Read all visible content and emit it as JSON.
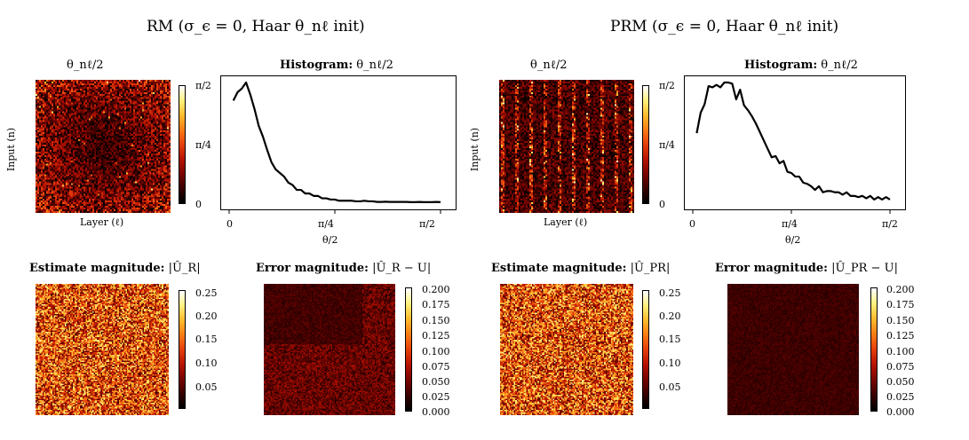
{
  "colors": {
    "colormap": [
      "#000000",
      "#3a0000",
      "#7a0500",
      "#b81300",
      "#e6400b",
      "#f97c14",
      "#fdbb2d",
      "#fff17a",
      "#ffffff"
    ],
    "line": "#000000",
    "background": "#ffffff"
  },
  "left_panel": {
    "title": "RM (σ_ϵ = 0, Haar θ_nℓ init)",
    "heatmap": {
      "title": "θ_nℓ/2",
      "ylabel": "Input (n)",
      "xlabel": "Layer (ℓ)",
      "colorbar_ticks": [
        "π/2",
        "π/4",
        "0"
      ],
      "pattern": "uniform-center-dark"
    },
    "histogram": {
      "title_bold": "Histogram:",
      "title_rest": "θ_nℓ/2",
      "xlabel": "θ/2",
      "xticks": [
        "0",
        "π/4",
        "π/2"
      ]
    },
    "estimate": {
      "title_bold": "Estimate magnitude:",
      "title_rest": "|Û_R|",
      "colorbar_ticks": [
        "0.25",
        "0.20",
        "0.15",
        "0.10",
        "0.05"
      ]
    },
    "error": {
      "title_bold": "Error magnitude:",
      "title_rest": "|Û_R − U|",
      "colorbar_ticks": [
        "0.200",
        "0.175",
        "0.150",
        "0.125",
        "0.100",
        "0.075",
        "0.050",
        "0.025",
        "0.000"
      ]
    }
  },
  "right_panel": {
    "title": "PRM (σ_ϵ = 0, Haar θ_nℓ init)",
    "heatmap": {
      "title": "θ_nℓ/2",
      "ylabel": "Input (n)",
      "xlabel": "Layer (ℓ)",
      "colorbar_ticks": [
        "π/2",
        "π/4",
        "0"
      ],
      "pattern": "vertical-stripes"
    },
    "histogram": {
      "title_bold": "Histogram:",
      "title_rest": "θ_nℓ/2",
      "xlabel": "θ/2",
      "xticks": [
        "0",
        "π/4",
        "π/2"
      ]
    },
    "estimate": {
      "title_bold": "Estimate magnitude:",
      "title_rest": "|Û_PR|",
      "colorbar_ticks": [
        "0.25",
        "0.20",
        "0.15",
        "0.10",
        "0.05"
      ]
    },
    "error": {
      "title_bold": "Error magnitude:",
      "title_rest": "|Û_PR − U|",
      "colorbar_ticks": [
        "0.200",
        "0.175",
        "0.150",
        "0.125",
        "0.100",
        "0.075",
        "0.050",
        "0.025",
        "0.000"
      ]
    }
  },
  "chart_data": [
    {
      "type": "line",
      "title": "Histogram: θ_nℓ/2",
      "xlabel": "θ/2",
      "x_unit": "fraction of π/2",
      "xlim": [
        0,
        1
      ],
      "x": [
        0.02,
        0.04,
        0.06,
        0.08,
        0.1,
        0.12,
        0.14,
        0.16,
        0.18,
        0.2,
        0.22,
        0.24,
        0.26,
        0.28,
        0.3,
        0.32,
        0.34,
        0.36,
        0.38,
        0.4,
        0.42,
        0.44,
        0.46,
        0.48,
        0.5,
        0.52,
        0.54,
        0.56,
        0.58,
        0.6,
        0.62,
        0.64,
        0.66,
        0.68,
        0.7,
        0.72,
        0.74,
        0.76,
        0.78,
        0.8,
        0.82,
        0.84,
        0.86,
        0.88,
        0.9,
        0.92,
        0.94,
        0.96,
        0.98,
        1.0
      ],
      "values": [
        0.85,
        0.92,
        0.95,
        1.0,
        0.9,
        0.78,
        0.64,
        0.55,
        0.44,
        0.34,
        0.28,
        0.25,
        0.22,
        0.17,
        0.15,
        0.11,
        0.11,
        0.08,
        0.08,
        0.06,
        0.06,
        0.04,
        0.04,
        0.03,
        0.03,
        0.02,
        0.02,
        0.02,
        0.02,
        0.015,
        0.015,
        0.02,
        0.015,
        0.015,
        0.01,
        0.01,
        0.012,
        0.01,
        0.01,
        0.01,
        0.01,
        0.01,
        0.008,
        0.008,
        0.01,
        0.008,
        0.008,
        0.008,
        0.01,
        0.008
      ]
    },
    {
      "type": "line",
      "title": "Histogram: θ_nℓ/2",
      "xlabel": "θ/2",
      "x_unit": "fraction of π/2",
      "xlim": [
        0,
        1
      ],
      "x": [
        0.02,
        0.04,
        0.06,
        0.08,
        0.1,
        0.12,
        0.14,
        0.16,
        0.18,
        0.2,
        0.22,
        0.24,
        0.26,
        0.28,
        0.3,
        0.32,
        0.34,
        0.36,
        0.38,
        0.4,
        0.42,
        0.44,
        0.46,
        0.48,
        0.5,
        0.52,
        0.54,
        0.56,
        0.58,
        0.6,
        0.62,
        0.64,
        0.66,
        0.68,
        0.7,
        0.72,
        0.74,
        0.76,
        0.78,
        0.8,
        0.82,
        0.84,
        0.86,
        0.88,
        0.9,
        0.92,
        0.94,
        0.96,
        0.98,
        1.0
      ],
      "values": [
        0.58,
        0.75,
        0.82,
        0.97,
        0.96,
        0.98,
        0.96,
        1.0,
        1.0,
        0.99,
        0.86,
        0.94,
        0.81,
        0.77,
        0.72,
        0.66,
        0.59,
        0.52,
        0.45,
        0.38,
        0.39,
        0.33,
        0.35,
        0.26,
        0.25,
        0.22,
        0.22,
        0.17,
        0.16,
        0.14,
        0.11,
        0.14,
        0.09,
        0.1,
        0.1,
        0.09,
        0.09,
        0.07,
        0.09,
        0.06,
        0.06,
        0.05,
        0.06,
        0.04,
        0.06,
        0.03,
        0.05,
        0.03,
        0.05,
        0.03
      ]
    }
  ]
}
